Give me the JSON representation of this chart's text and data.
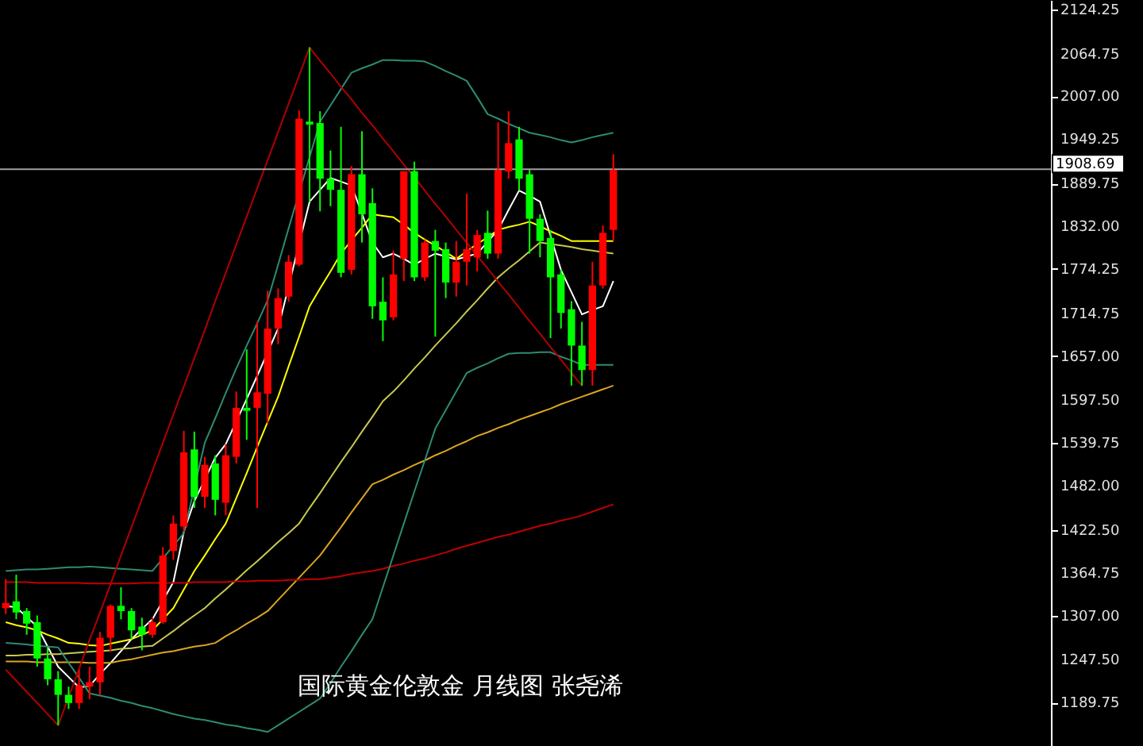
{
  "chart_data": {
    "type": "candlestick",
    "categories": [
      null,
      null,
      null,
      null,
      null,
      null,
      null,
      null,
      null,
      null,
      null,
      null,
      null,
      null,
      null,
      null,
      null,
      null,
      null,
      null,
      null,
      null,
      null,
      null,
      null,
      null,
      null,
      null,
      null,
      null,
      null,
      null,
      null,
      null,
      null,
      null,
      null,
      null,
      null,
      null,
      null,
      null,
      null,
      null,
      null,
      null,
      null,
      null,
      null,
      null,
      null,
      null,
      null,
      null,
      null,
      null,
      null,
      null,
      null
    ],
    "ohlc": [
      [
        1317,
        1356,
        1309,
        1324
      ],
      [
        1326,
        1362,
        1302,
        1311
      ],
      [
        1313,
        1317,
        1281,
        1296
      ],
      [
        1298,
        1307,
        1238,
        1249
      ],
      [
        1249,
        1264,
        1213,
        1221
      ],
      [
        1221,
        1232,
        1159,
        1200
      ],
      [
        1200,
        1211,
        1181,
        1189
      ],
      [
        1189,
        1234,
        1181,
        1213
      ],
      [
        1211,
        1238,
        1194,
        1217
      ],
      [
        1217,
        1285,
        1200,
        1277
      ],
      [
        1277,
        1322,
        1258,
        1320
      ],
      [
        1320,
        1345,
        1302,
        1313
      ],
      [
        1313,
        1317,
        1275,
        1287
      ],
      [
        1292,
        1304,
        1260,
        1281
      ],
      [
        1281,
        1304,
        1277,
        1298
      ],
      [
        1298,
        1399,
        1296,
        1388
      ],
      [
        1394,
        1442,
        1382,
        1431
      ],
      [
        1427,
        1556,
        1420,
        1527
      ],
      [
        1531,
        1555,
        1452,
        1467
      ],
      [
        1467,
        1521,
        1452,
        1510
      ],
      [
        1512,
        1523,
        1442,
        1463
      ],
      [
        1459,
        1538,
        1442,
        1523
      ],
      [
        1521,
        1609,
        1512,
        1587
      ],
      [
        1587,
        1666,
        1544,
        1583
      ],
      [
        1587,
        1703,
        1452,
        1608
      ],
      [
        1606,
        1745,
        1566,
        1694
      ],
      [
        1694,
        1748,
        1673,
        1735
      ],
      [
        1737,
        1793,
        1730,
        1784
      ],
      [
        1780,
        1988,
        1778,
        1977
      ],
      [
        1973,
        2073,
        1865,
        1969
      ],
      [
        1971,
        1987,
        1852,
        1896
      ],
      [
        1896,
        1934,
        1859,
        1881
      ],
      [
        1881,
        1966,
        1763,
        1769
      ],
      [
        1773,
        1913,
        1767,
        1902
      ],
      [
        1902,
        1960,
        1810,
        1848
      ],
      [
        1863,
        1883,
        1707,
        1724
      ],
      [
        1730,
        1763,
        1677,
        1705
      ],
      [
        1709,
        1799,
        1705,
        1767
      ],
      [
        1788,
        1906,
        1758,
        1906
      ],
      [
        1906,
        1919,
        1758,
        1763
      ],
      [
        1763,
        1814,
        1758,
        1810
      ],
      [
        1812,
        1827,
        1683,
        1799
      ],
      [
        1801,
        1810,
        1735,
        1756
      ],
      [
        1756,
        1812,
        1737,
        1784
      ],
      [
        1784,
        1876,
        1752,
        1801
      ],
      [
        1790,
        1827,
        1771,
        1820
      ],
      [
        1823,
        1853,
        1788,
        1795
      ],
      [
        1795,
        1972,
        1788,
        1908
      ],
      [
        1906,
        1987,
        1896,
        1944
      ],
      [
        1949,
        1966,
        1880,
        1896
      ],
      [
        1902,
        1908,
        1795,
        1842
      ],
      [
        1842,
        1848,
        1790,
        1812
      ],
      [
        1816,
        1827,
        1681,
        1763
      ],
      [
        1767,
        1773,
        1694,
        1715
      ],
      [
        1720,
        1731,
        1617,
        1671
      ],
      [
        1671,
        1703,
        1617,
        1638
      ],
      [
        1638,
        1784,
        1617,
        1752
      ],
      [
        1752,
        1833,
        1748,
        1823
      ],
      [
        1827,
        1929,
        1812,
        1908
      ]
    ],
    "colors": [
      "#ff0000",
      "#00ff00",
      "#00ff00",
      "#00ff00",
      "#00ff00",
      "#00ff00",
      "#00ff00",
      "#ff0000",
      "#ff0000",
      "#ff0000",
      "#ff0000",
      "#00ff00",
      "#00ff00",
      "#00ff00",
      "#ff0000",
      "#ff0000",
      "#ff0000",
      "#ff0000",
      "#00ff00",
      "#ff0000",
      "#00ff00",
      "#ff0000",
      "#ff0000",
      "#00ff00",
      "#ff0000",
      "#ff0000",
      "#ff0000",
      "#ff0000",
      "#ff0000",
      "#00ff00",
      "#00ff00",
      "#00ff00",
      "#00ff00",
      "#ff0000",
      "#00ff00",
      "#00ff00",
      "#00ff00",
      "#ff0000",
      "#ff0000",
      "#00ff00",
      "#ff0000",
      "#00ff00",
      "#00ff00",
      "#ff0000",
      "#ff0000",
      "#ff0000",
      "#00ff00",
      "#ff0000",
      "#ff0000",
      "#00ff00",
      "#00ff00",
      "#00ff00",
      "#00ff00",
      "#00ff00",
      "#00ff00",
      "#00ff00",
      "#ff0000",
      "#ff0000",
      "#ff0000"
    ],
    "series": [
      {
        "type": "line",
        "color": "#ffffff",
        "values": [
          1320,
          1318,
          1305,
          1292,
          1265,
          1238,
          1224,
          1210,
          1212,
          1228,
          1243,
          1259,
          1275,
          1289,
          1302,
          1327,
          1352,
          1420,
          1461,
          null,
          1520,
          1538,
          null,
          1599,
          1630,
          null,
          1694,
          null,
          null,
          1865,
          1881,
          1897,
          1892,
          1887,
          1849,
          1810,
          1790,
          1795,
          1788,
          1780,
          1788,
          1795,
          1791,
          1787,
          1791,
          1795,
          1811,
          1827,
          1854,
          1880,
          1873,
          1865,
          1819,
          1773,
          1743,
          1713,
          1719,
          1724,
          1758
        ]
      },
      {
        "type": "line",
        "color": "#ffff00",
        "values": [
          1298,
          1294,
          1291,
          1287,
          1281,
          1276,
          1270,
          1269,
          1267,
          1266,
          1269,
          1272,
          1275,
          1281,
          1287,
          1302,
          1317,
          1342,
          1367,
          1388,
          1410,
          1431,
          1465,
          1499,
          1534,
          1568,
          1602,
          1643,
          1683,
          1724,
          1748,
          1771,
          1795,
          1813,
          1830,
          1848,
          1846,
          1844,
          1834,
          1823,
          1814,
          1806,
          1797,
          1788,
          1798,
          1808,
          1817,
          1827,
          1831,
          1834,
          1838,
          1832,
          1825,
          1819,
          1812,
          1812,
          1812,
          1812,
          1812
        ]
      },
      {
        "type": "line",
        "color": "#c8c850",
        "values": [
          1253,
          1253,
          1254,
          1254,
          1255,
          1255,
          1256,
          1257,
          1258,
          1259,
          1260,
          1262,
          1263,
          1265,
          1266,
          1276,
          1286,
          1297,
          1307,
          1317,
          1330,
          1342,
          1355,
          1368,
          1380,
          1393,
          1406,
          1418,
          1431,
          1452,
          1472,
          1493,
          1514,
          1534,
          1555,
          1575,
          1596,
          1609,
          1624,
          1640,
          1655,
          1671,
          1686,
          1701,
          1717,
          1732,
          1748,
          1763,
          1775,
          1786,
          1798,
          1810,
          1808,
          1806,
          1804,
          1801,
          1799,
          1797,
          1795
        ]
      },
      {
        "type": "line",
        "color": "#daa520",
        "values": [
          1245,
          1245,
          1245,
          1244,
          1244,
          1244,
          1244,
          1244,
          1243,
          1243,
          1243,
          1246,
          1248,
          1251,
          1254,
          1257,
          1259,
          1262,
          1265,
          1267,
          1270,
          1279,
          1287,
          1296,
          1304,
          1313,
          1328,
          1343,
          1358,
          1373,
          1388,
          1407,
          1426,
          1446,
          1465,
          1484,
          1490,
          1497,
          1503,
          1510,
          1516,
          1523,
          1529,
          1536,
          1542,
          1549,
          1554,
          1560,
          1565,
          1571,
          1576,
          1581,
          1586,
          1592,
          1597,
          1602,
          1607,
          1612,
          1617
        ]
      },
      {
        "type": "line",
        "color": "#c00000",
        "values": [
          1352,
          1352,
          1352,
          1351,
          1351,
          1351,
          1351,
          1351,
          1350,
          1350,
          1350,
          1350,
          1350,
          1351,
          1351,
          1351,
          1351,
          1351,
          1352,
          1352,
          1352,
          1352,
          1353,
          1353,
          1354,
          1354,
          1354,
          1355,
          1355,
          1356,
          1356,
          1358,
          1360,
          1363,
          1365,
          1367,
          1370,
          1374,
          1377,
          1381,
          1384,
          1388,
          1392,
          1397,
          1401,
          1405,
          1409,
          1413,
          1416,
          1420,
          1424,
          1428,
          1431,
          1435,
          1438,
          1442,
          1447,
          1452,
          1457
        ]
      },
      {
        "type": "line",
        "color": "#2e8b74",
        "values": [
          1367,
          1368,
          1369,
          1369,
          1370,
          1371,
          1372,
          1372,
          1373,
          1372,
          1371,
          1370,
          1369,
          1368,
          1367,
          1384,
          1401,
          1418,
          null,
          1540,
          1573,
          1607,
          1640,
          1671,
          1701,
          1732,
          1780,
          1829,
          null,
          1925,
          1973,
          1995,
          2017,
          2039,
          2045,
          2050,
          2056,
          2056,
          2055,
          2055,
          2054,
          2048,
          2041,
          2035,
          2028,
          2006,
          1983,
          1977,
          1970,
          1964,
          1958,
          1955,
          1952,
          1948,
          1945,
          1948,
          1952,
          1955,
          1958
        ]
      },
      {
        "type": "line",
        "color": "#2e8b74",
        "values": [
          1270,
          1269,
          1268,
          1266,
          1265,
          1264,
          1243,
          1223,
          1202,
          1199,
          1196,
          1192,
          1189,
          1185,
          1182,
          1178,
          1174,
          1171,
          1168,
          1166,
          1163,
          1160,
          1158,
          1155,
          1153,
          1150,
          1159,
          1168,
          1177,
          1186,
          1195,
          1216,
          1238,
          1259,
          1281,
          1302,
          1345,
          1388,
          1431,
          1474,
          1516,
          1559,
          1584,
          1609,
          1634,
          1641,
          1647,
          1654,
          1660,
          1661,
          1661,
          1662,
          1662,
          1656,
          1651,
          1645,
          1645,
          1645,
          1645
        ]
      },
      {
        "type": "line",
        "color": "#b00000",
        "values": [
          1234,
          1219,
          1204,
          1189,
          1174,
          1159,
          1197,
          1235,
          1274,
          1311,
          1349,
          1388,
          1426,
          1464,
          1502,
          1540,
          1578,
          1616,
          1654,
          1692,
          1731,
          1769,
          1807,
          1845,
          1883,
          1921,
          1959,
          1997,
          2035,
          2073,
          2055,
          2038,
          2020,
          2003,
          1985,
          1968,
          1950,
          1933,
          1915,
          1898,
          1880,
          1862,
          1845,
          1827,
          1810,
          1792,
          1775,
          1757,
          1740,
          1722,
          1704,
          1687,
          1669,
          1652,
          1634,
          1617,
          null,
          null,
          null
        ]
      }
    ],
    "ylim": [
      1131,
      2137
    ],
    "yticks": [
      2124.25,
      2064.75,
      {
        "value": 2007,
        "label": "2007.00"
      },
      1949.25,
      1889.75,
      {
        "value": 1832,
        "label": "1832.00"
      },
      1774.25,
      1714.75,
      {
        "value": 1657,
        "label": "1657.00"
      },
      {
        "value": 1597.5,
        "label": "1597.50"
      },
      1539.75,
      {
        "value": 1482,
        "label": "1482.00"
      },
      {
        "value": 1422.5,
        "label": "1422.50"
      },
      1364.75,
      {
        "value": 1307,
        "label": "1307.00"
      },
      {
        "value": 1247.5,
        "label": "1247.50"
      },
      1189.75
    ],
    "tick_labels": "y",
    "ref_lines": [
      {
        "axis": "y",
        "value": 1908.69,
        "label": "1908.69",
        "color": "#a0a0a0"
      }
    ],
    "annotations": [
      "国际黄金伦敦金 月线图 张尧浠"
    ]
  }
}
